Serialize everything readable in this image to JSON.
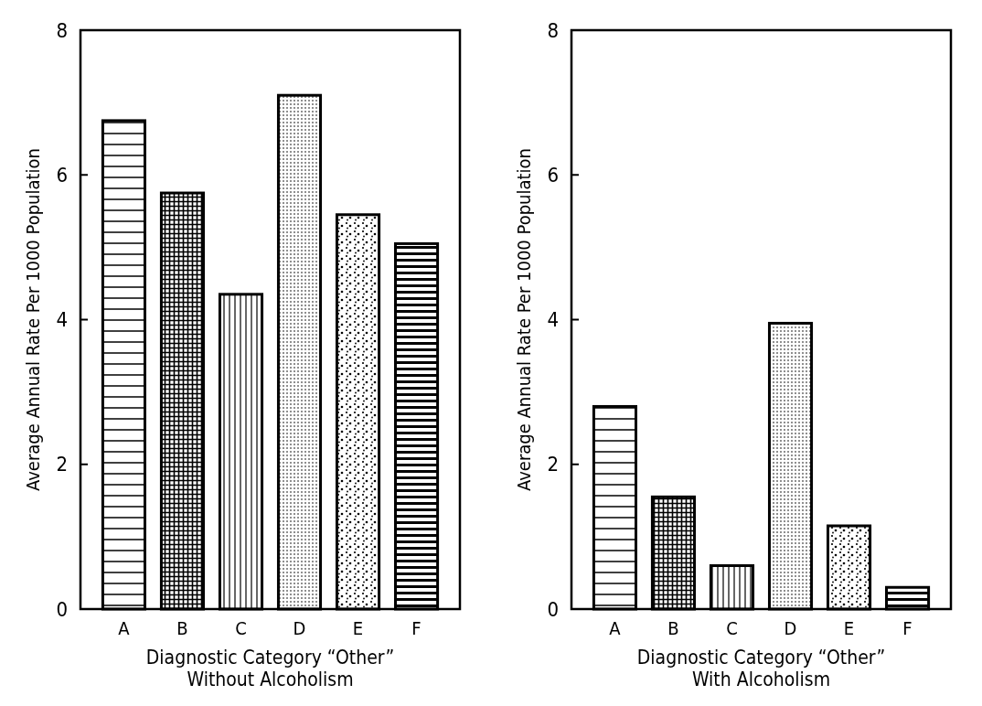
{
  "chart_data": [
    {
      "type": "bar",
      "categories": [
        "A",
        "B",
        "C",
        "D",
        "E",
        "F"
      ],
      "values": [
        6.75,
        5.75,
        4.35,
        7.1,
        5.45,
        5.05
      ],
      "color": "#000000",
      "ylabel": "Average Annual Rate Per 1000 Population",
      "xlabel": "Diagnostic Category “Other”\nWithout Alcoholism",
      "ylim": [
        0,
        8
      ],
      "yticks": [
        0,
        2,
        4,
        6,
        8
      ],
      "grid": false
    },
    {
      "type": "bar",
      "categories": [
        "A",
        "B",
        "C",
        "D",
        "E",
        "F"
      ],
      "values": [
        2.8,
        1.55,
        0.6,
        3.95,
        1.15,
        0.3
      ],
      "color": "#000000",
      "ylabel": "Average Annual Rate Per 1000 Population",
      "xlabel": "Diagnostic Category “Other”\nWith Alcoholism",
      "ylim": [
        0,
        8
      ],
      "yticks": [
        0,
        2,
        4,
        6,
        8
      ],
      "grid": false
    }
  ]
}
